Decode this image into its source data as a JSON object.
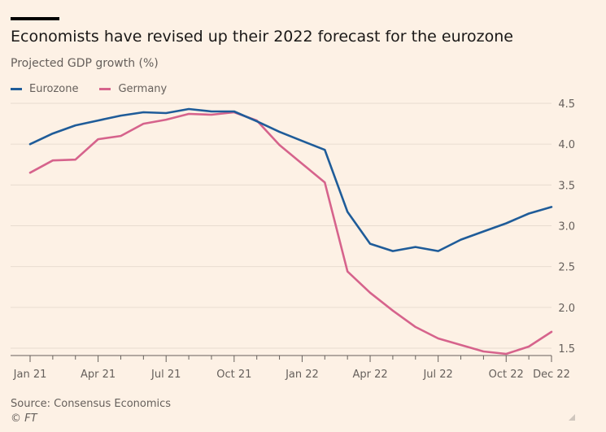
{
  "header": {
    "title": "Economists have revised up their 2022 forecast for the eurozone",
    "subtitle": "Projected GDP growth (%)"
  },
  "footer": {
    "source": "Source: Consensus Economics",
    "copyright": "© FT"
  },
  "chart_data": {
    "type": "line",
    "title": "Economists have revised up their 2022 forecast for the eurozone",
    "ylabel": "Projected GDP growth (%)",
    "ylim": [
      1.5,
      4.5
    ],
    "y_ticks": [
      "4.5",
      "4.0",
      "3.5",
      "3.0",
      "2.5",
      "2.0",
      "1.5"
    ],
    "y_tick_values": [
      4.5,
      4.0,
      3.5,
      3.0,
      2.5,
      2.0,
      1.5
    ],
    "grid": true,
    "legend_position": "top-left",
    "x": [
      "Jan 21",
      "Feb 21",
      "Mar 21",
      "Apr 21",
      "May 21",
      "Jun 21",
      "Jul 21",
      "Aug 21",
      "Sep 21",
      "Oct 21",
      "Nov 21",
      "Dec 21",
      "Jan 22",
      "Feb 22",
      "Mar 22",
      "Apr 22",
      "May 22",
      "Jun 22",
      "Jul 22",
      "Aug 22",
      "Sep 22",
      "Oct 22",
      "Nov 22",
      "Dec 22"
    ],
    "x_tick_labels": [
      {
        "index": 0,
        "label": "Jan 21"
      },
      {
        "index": 3,
        "label": "Apr 21"
      },
      {
        "index": 6,
        "label": "Jul 21"
      },
      {
        "index": 9,
        "label": "Oct 21"
      },
      {
        "index": 12,
        "label": "Jan 22"
      },
      {
        "index": 15,
        "label": "Apr 22"
      },
      {
        "index": 18,
        "label": "Jul 22"
      },
      {
        "index": 21,
        "label": "Oct 22"
      },
      {
        "index": 23,
        "label": "Dec 22"
      }
    ],
    "series": [
      {
        "name": "Eurozone",
        "color": "#1f5c99",
        "values": [
          4.0,
          4.13,
          4.23,
          4.29,
          4.35,
          4.39,
          4.38,
          4.43,
          4.4,
          4.4,
          4.28,
          4.15,
          4.04,
          3.93,
          3.17,
          2.78,
          2.69,
          2.74,
          2.69,
          2.83,
          2.93,
          3.03,
          3.15,
          3.23
        ]
      },
      {
        "name": "Germany",
        "color": "#d6638c",
        "values": [
          3.65,
          3.8,
          3.81,
          4.06,
          4.1,
          4.25,
          4.3,
          4.37,
          4.36,
          4.39,
          4.29,
          3.99,
          3.76,
          3.53,
          2.44,
          2.18,
          1.96,
          1.76,
          1.62,
          1.54,
          1.46,
          1.43,
          1.52,
          1.7
        ]
      }
    ]
  }
}
